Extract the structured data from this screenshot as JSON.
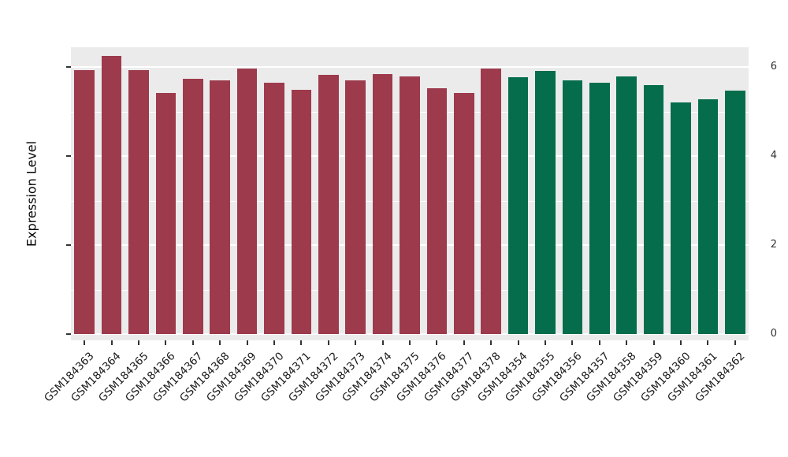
{
  "chart_data": {
    "type": "bar",
    "title": "",
    "xlabel": "",
    "ylabel": "Expression Level",
    "ylim": [
      0,
      6.45
    ],
    "yticks_major": [
      0,
      2,
      4,
      6
    ],
    "yticks_minor": [
      1,
      3,
      5
    ],
    "grid": true,
    "legend": "none",
    "panel_bg": "#EBEBEB",
    "grid_color": "#FFFFFF",
    "categories": [
      "GSM184363",
      "GSM184364",
      "GSM184365",
      "GSM184366",
      "GSM184367",
      "GSM184368",
      "GSM184369",
      "GSM184370",
      "GSM184371",
      "GSM184372",
      "GSM184373",
      "GSM184374",
      "GSM184375",
      "GSM184376",
      "GSM184377",
      "GSM184378",
      "GSM184354",
      "GSM184355",
      "GSM184356",
      "GSM184357",
      "GSM184358",
      "GSM184359",
      "GSM184360",
      "GSM184361",
      "GSM184362"
    ],
    "values": [
      5.94,
      6.26,
      5.94,
      5.43,
      5.74,
      5.71,
      5.98,
      5.66,
      5.5,
      5.83,
      5.71,
      5.85,
      5.8,
      5.53,
      5.43,
      5.98,
      5.78,
      5.92,
      5.71,
      5.66,
      5.8,
      5.6,
      5.21,
      5.28,
      5.48
    ],
    "groups": [
      "A",
      "A",
      "A",
      "A",
      "A",
      "A",
      "A",
      "A",
      "A",
      "A",
      "A",
      "A",
      "A",
      "A",
      "A",
      "A",
      "B",
      "B",
      "B",
      "B",
      "B",
      "B",
      "B",
      "B",
      "B"
    ],
    "group_colors": {
      "A": "#9D3B4D",
      "B": "#056D4C"
    },
    "bar_width_ratio": 0.75
  }
}
